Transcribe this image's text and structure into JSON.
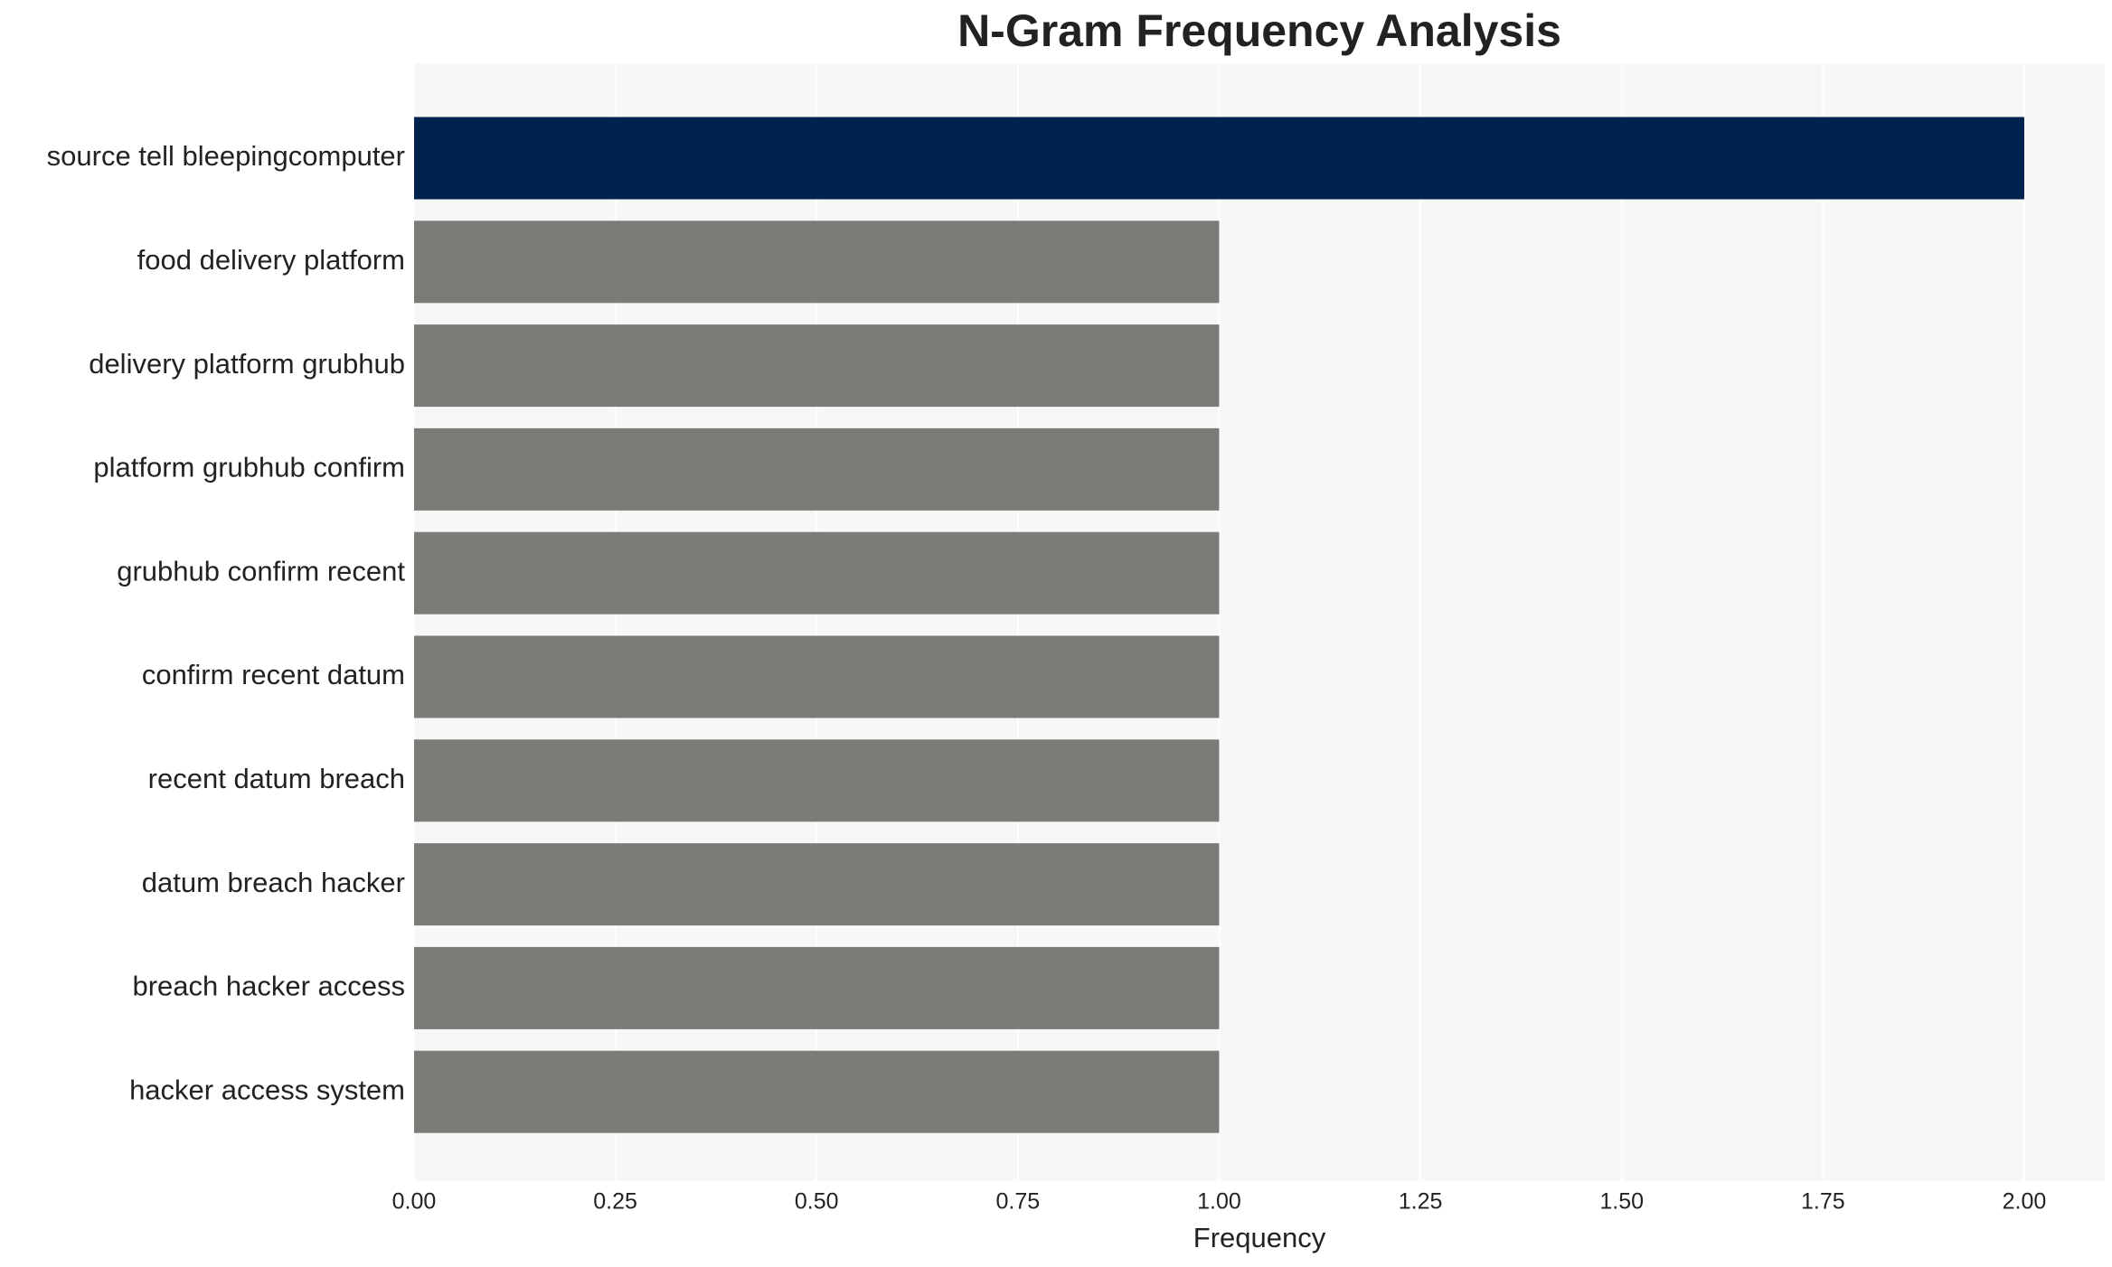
{
  "chart_data": {
    "type": "hbar",
    "title": "N-Gram Frequency Analysis",
    "x_label": "Frequency",
    "categories": [
      "source tell bleepingcomputer",
      "food delivery platform",
      "delivery platform grubhub",
      "platform grubhub confirm",
      "grubhub confirm recent",
      "confirm recent datum",
      "recent datum breach",
      "datum breach hacker",
      "breach hacker access",
      "hacker access system"
    ],
    "values": [
      2,
      1,
      1,
      1,
      1,
      1,
      1,
      1,
      1,
      1
    ],
    "colors": [
      "#00224e",
      "#7b7b77",
      "#7b7b77",
      "#7b7b77",
      "#7b7b77",
      "#7b7b77",
      "#7b7b77",
      "#7b7b77",
      "#7b7b77",
      "#7b7b77"
    ],
    "xlim": [
      0,
      2.1
    ],
    "xticks": [
      {
        "value": 0,
        "label": "0.00"
      },
      {
        "value": 0.25,
        "label": "0.25"
      },
      {
        "value": 0.5,
        "label": "0.50"
      },
      {
        "value": 0.75,
        "label": "0.75"
      },
      {
        "value": 1,
        "label": "1.00"
      },
      {
        "value": 1.25,
        "label": "1.25"
      },
      {
        "value": 1.5,
        "label": "1.50"
      },
      {
        "value": 1.75,
        "label": "1.75"
      },
      {
        "value": 2,
        "label": "2.00"
      }
    ],
    "grid": true
  }
}
